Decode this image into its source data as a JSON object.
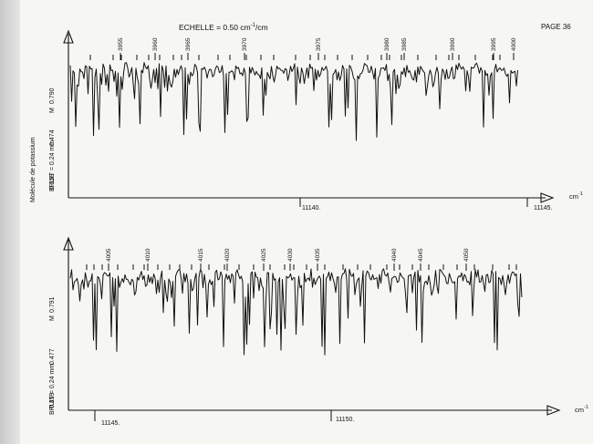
{
  "header": {
    "scale_label": "ECHELLE = 0.50 cm",
    "scale_sup": "-1",
    "scale_unit": "/cm",
    "page_label": "PAGE 36"
  },
  "colors": {
    "ink": "#111111",
    "paper": "#f6f6f3"
  },
  "chart_data": [
    {
      "type": "line",
      "title": "",
      "ylabel_molecule": "Molécule de potassium",
      "ylabel_noise": "BRUIT = 0.24 mm",
      "y_marker": "M",
      "y_ticks": [
        "0.790",
        "0.474",
        "0.159"
      ],
      "x_unit": "cm",
      "x_unit_sup": "-1",
      "x_ticks": [
        {
          "value": 11140,
          "label": "11140."
        },
        {
          "value": 11145,
          "label": "11145."
        }
      ],
      "xlim": [
        11136,
        11145
      ],
      "line_numbers": [
        "3955",
        "3960",
        "3965",
        "3970",
        "3975",
        "3980",
        "3985",
        "3990",
        "3995",
        "4000"
      ],
      "series": [
        {
          "values": []
        }
      ]
    },
    {
      "type": "line",
      "title": "",
      "ylabel_molecule": "",
      "ylabel_noise": "BRUIT = 0.24 mm",
      "y_marker": "M",
      "y_ticks": [
        "0.791",
        "0.477",
        "0.159"
      ],
      "x_unit": "cm",
      "x_unit_sup": "-1",
      "x_ticks": [
        {
          "value": 11145,
          "label": "11145."
        },
        {
          "value": 11150,
          "label": "11150."
        }
      ],
      "xlim": [
        11145,
        11155
      ],
      "line_numbers": [
        "4005",
        "4010",
        "4015",
        "4020",
        "4025",
        "4030",
        "4035",
        "4040",
        "4045",
        "4050"
      ],
      "series": [
        {
          "values": []
        }
      ]
    }
  ]
}
